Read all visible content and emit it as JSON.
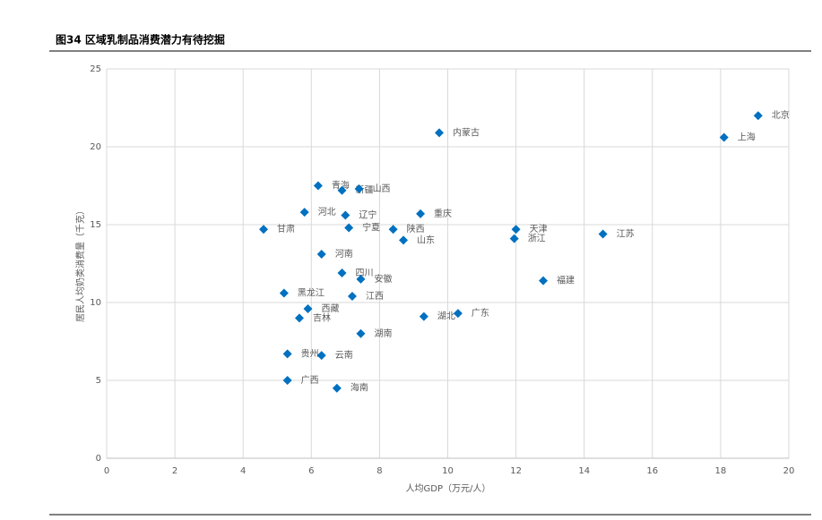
{
  "chart_data": {
    "type": "scatter",
    "title": "图34 区域乳制品消费潜力有待挖掘",
    "x_label": "人均GDP（万元/人）",
    "y_label": "居民人均奶类消费量（千克）",
    "color": "#0070c0",
    "grid": true,
    "xlim": [
      0,
      20
    ],
    "xticks": [
      0,
      2,
      4,
      6,
      8,
      10,
      12,
      14,
      16,
      18,
      20
    ],
    "ylim": [
      0,
      25
    ],
    "yticks": [
      0,
      5,
      10,
      15,
      20,
      25
    ],
    "labels": [
      "北京",
      "上海",
      "内蒙古",
      "青海",
      "新疆",
      "山西",
      "河北",
      "辽宁",
      "重庆",
      "甘肃",
      "宁夏",
      "陕西",
      "山东",
      "天津",
      "浙江",
      "江苏",
      "河南",
      "四川",
      "安徽",
      "福建",
      "黑龙江",
      "江西",
      "西藏",
      "吉林",
      "湖北",
      "广东",
      "湖南",
      "贵州",
      "云南",
      "广西",
      "海南"
    ],
    "x": [
      19.1,
      18.1,
      9.75,
      6.2,
      6.9,
      7.4,
      5.8,
      7.0,
      9.2,
      4.6,
      7.1,
      8.4,
      8.7,
      12.0,
      11.95,
      14.55,
      6.3,
      6.9,
      7.45,
      12.8,
      5.2,
      7.2,
      5.9,
      5.65,
      9.3,
      10.3,
      7.45,
      5.3,
      6.3,
      5.3,
      6.75
    ],
    "values": [
      22.0,
      20.6,
      20.9,
      17.5,
      17.2,
      17.3,
      15.8,
      15.6,
      15.7,
      14.7,
      14.8,
      14.7,
      14.0,
      14.7,
      14.1,
      14.4,
      13.1,
      11.9,
      11.5,
      11.4,
      10.6,
      10.4,
      9.6,
      9.0,
      9.1,
      9.3,
      8.0,
      6.7,
      6.6,
      5.0,
      4.5
    ]
  }
}
